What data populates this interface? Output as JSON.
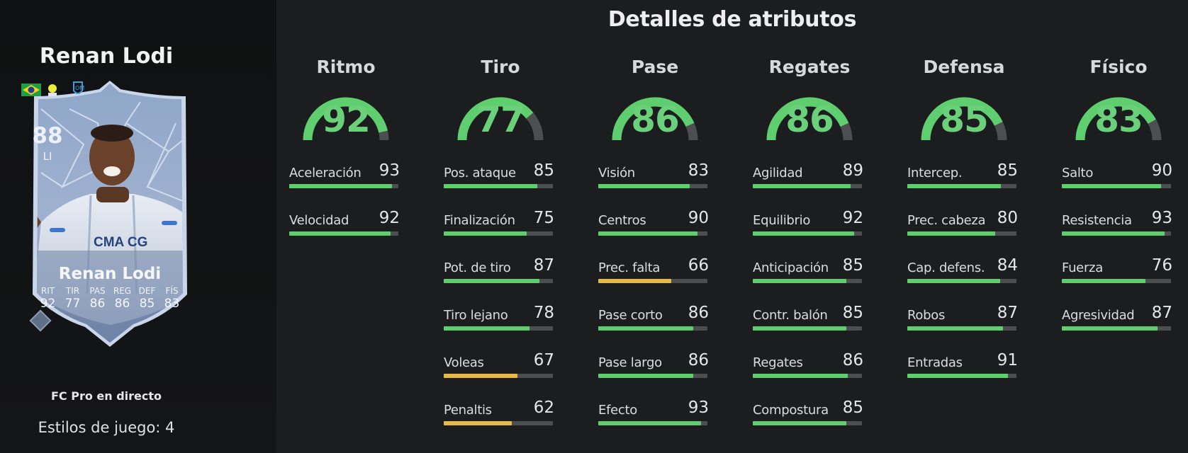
{
  "player": {
    "name": "Renan Lodi",
    "rating": "88",
    "position": "LI",
    "card_type": "FC Pro en directo",
    "playstyles": "Estilos de juego: 4",
    "face_stats": [
      {
        "label": "RIT",
        "value": "92"
      },
      {
        "label": "TIR",
        "value": "77"
      },
      {
        "label": "PAS",
        "value": "86"
      },
      {
        "label": "REG",
        "value": "86"
      },
      {
        "label": "DEF",
        "value": "85"
      },
      {
        "label": "FÍS",
        "value": "83"
      }
    ]
  },
  "title": "Detalles de atributos",
  "colors": {
    "high": "#5fce6e",
    "mid": "#e7b84a",
    "track": "#4d4e50"
  },
  "categories": [
    {
      "name": "Ritmo",
      "value": 92,
      "attributes": [
        {
          "label": "Aceleración",
          "value": 93
        },
        {
          "label": "Velocidad",
          "value": 92
        }
      ]
    },
    {
      "name": "Tiro",
      "value": 77,
      "attributes": [
        {
          "label": "Pos. ataque",
          "value": 85
        },
        {
          "label": "Finalización",
          "value": 75
        },
        {
          "label": "Pot. de tiro",
          "value": 87
        },
        {
          "label": "Tiro lejano",
          "value": 78
        },
        {
          "label": "Voleas",
          "value": 67
        },
        {
          "label": "Penaltis",
          "value": 62
        }
      ]
    },
    {
      "name": "Pase",
      "value": 86,
      "attributes": [
        {
          "label": "Visión",
          "value": 83
        },
        {
          "label": "Centros",
          "value": 90
        },
        {
          "label": "Prec. falta",
          "value": 66
        },
        {
          "label": "Pase corto",
          "value": 86
        },
        {
          "label": "Pase largo",
          "value": 86
        },
        {
          "label": "Efecto",
          "value": 93
        }
      ]
    },
    {
      "name": "Regates",
      "value": 86,
      "attributes": [
        {
          "label": "Agilidad",
          "value": 89
        },
        {
          "label": "Equilibrio",
          "value": 92
        },
        {
          "label": "Anticipación",
          "value": 85
        },
        {
          "label": "Contr. balón",
          "value": 85
        },
        {
          "label": "Regates",
          "value": 86
        },
        {
          "label": "Compostura",
          "value": 85
        }
      ]
    },
    {
      "name": "Defensa",
      "value": 85,
      "attributes": [
        {
          "label": "Intercep.",
          "value": 85
        },
        {
          "label": "Prec. cabeza",
          "value": 80
        },
        {
          "label": "Cap. defens.",
          "value": 84
        },
        {
          "label": "Robos",
          "value": 87
        },
        {
          "label": "Entradas",
          "value": 91
        }
      ]
    },
    {
      "name": "Físico",
      "value": 83,
      "attributes": [
        {
          "label": "Salto",
          "value": 90
        },
        {
          "label": "Resistencia",
          "value": 93
        },
        {
          "label": "Fuerza",
          "value": 76
        },
        {
          "label": "Agresividad",
          "value": 87
        }
      ]
    }
  ]
}
